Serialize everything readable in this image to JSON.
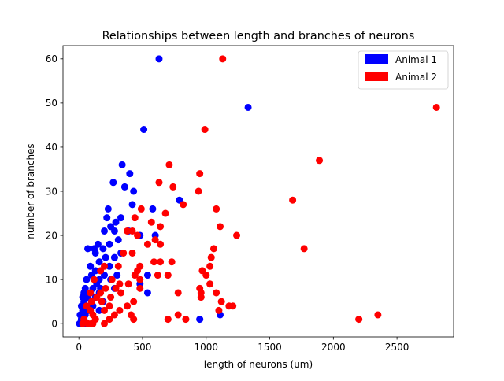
{
  "chart_data": {
    "type": "scatter",
    "title": "Relationships between length and branches of neurons",
    "xlabel": "length of neurons (um)",
    "ylabel": "number of branches",
    "xlim": [
      -125,
      2945
    ],
    "ylim": [
      -3,
      63
    ],
    "xticks": [
      0,
      500,
      1000,
      1500,
      2000,
      2500
    ],
    "yticks": [
      0,
      10,
      20,
      30,
      40,
      50,
      60
    ],
    "grid": false,
    "legend_position": "top-right",
    "series": [
      {
        "name": "Animal 1",
        "color": "#0000ff",
        "points": [
          [
            630,
            60
          ],
          [
            1330,
            49
          ],
          [
            510,
            44
          ],
          [
            340,
            36
          ],
          [
            400,
            34
          ],
          [
            270,
            32
          ],
          [
            360,
            31
          ],
          [
            430,
            30
          ],
          [
            790,
            28
          ],
          [
            420,
            27
          ],
          [
            230,
            26
          ],
          [
            580,
            26
          ],
          [
            220,
            24
          ],
          [
            330,
            24
          ],
          [
            290,
            23
          ],
          [
            250,
            22
          ],
          [
            280,
            21
          ],
          [
            200,
            21
          ],
          [
            390,
            21
          ],
          [
            600,
            20
          ],
          [
            480,
            20
          ],
          [
            310,
            19
          ],
          [
            240,
            18
          ],
          [
            150,
            18
          ],
          [
            190,
            17
          ],
          [
            70,
            17
          ],
          [
            120,
            17
          ],
          [
            330,
            16
          ],
          [
            130,
            16
          ],
          [
            280,
            15
          ],
          [
            210,
            15
          ],
          [
            160,
            14
          ],
          [
            90,
            13
          ],
          [
            240,
            13
          ],
          [
            130,
            12
          ],
          [
            100,
            11
          ],
          [
            200,
            11
          ],
          [
            300,
            11
          ],
          [
            540,
            11
          ],
          [
            60,
            10
          ],
          [
            160,
            10
          ],
          [
            250,
            10
          ],
          [
            140,
            9
          ],
          [
            480,
            9
          ],
          [
            50,
            8
          ],
          [
            110,
            8
          ],
          [
            170,
            8
          ],
          [
            280,
            8
          ],
          [
            40,
            7
          ],
          [
            90,
            7
          ],
          [
            160,
            7
          ],
          [
            540,
            7
          ],
          [
            30,
            6
          ],
          [
            70,
            6
          ],
          [
            130,
            6
          ],
          [
            40,
            5
          ],
          [
            100,
            5
          ],
          [
            190,
            5
          ],
          [
            20,
            4
          ],
          [
            60,
            4
          ],
          [
            110,
            4
          ],
          [
            30,
            3
          ],
          [
            80,
            3
          ],
          [
            160,
            3
          ],
          [
            10,
            2
          ],
          [
            50,
            2
          ],
          [
            1110,
            2
          ],
          [
            20,
            1
          ],
          [
            40,
            1
          ],
          [
            950,
            1
          ],
          [
            5,
            0
          ],
          [
            15,
            0
          ],
          [
            30,
            0
          ],
          [
            60,
            0
          ]
        ]
      },
      {
        "name": "Animal 2",
        "color": "#ff0000",
        "points": [
          [
            1130,
            60
          ],
          [
            2810,
            49
          ],
          [
            990,
            44
          ],
          [
            1890,
            37
          ],
          [
            710,
            36
          ],
          [
            950,
            34
          ],
          [
            630,
            32
          ],
          [
            740,
            31
          ],
          [
            940,
            30
          ],
          [
            1680,
            28
          ],
          [
            820,
            27
          ],
          [
            1080,
            26
          ],
          [
            490,
            26
          ],
          [
            680,
            25
          ],
          [
            440,
            24
          ],
          [
            570,
            23
          ],
          [
            1110,
            22
          ],
          [
            640,
            22
          ],
          [
            380,
            21
          ],
          [
            420,
            21
          ],
          [
            460,
            20
          ],
          [
            1240,
            20
          ],
          [
            600,
            19
          ],
          [
            640,
            18
          ],
          [
            540,
            18
          ],
          [
            1770,
            17
          ],
          [
            1060,
            17
          ],
          [
            420,
            16
          ],
          [
            350,
            16
          ],
          [
            1040,
            15
          ],
          [
            590,
            14
          ],
          [
            640,
            14
          ],
          [
            730,
            14
          ],
          [
            1030,
            13
          ],
          [
            480,
            13
          ],
          [
            310,
            13
          ],
          [
            200,
            13
          ],
          [
            170,
            12
          ],
          [
            460,
            12
          ],
          [
            970,
            12
          ],
          [
            620,
            11
          ],
          [
            700,
            11
          ],
          [
            440,
            11
          ],
          [
            1000,
            11
          ],
          [
            120,
            10
          ],
          [
            260,
            10
          ],
          [
            480,
            10
          ],
          [
            320,
            9
          ],
          [
            390,
            9
          ],
          [
            1030,
            9
          ],
          [
            210,
            8
          ],
          [
            290,
            8
          ],
          [
            480,
            8
          ],
          [
            950,
            8
          ],
          [
            90,
            7
          ],
          [
            170,
            7
          ],
          [
            330,
            7
          ],
          [
            780,
            7
          ],
          [
            1080,
            7
          ],
          [
            960,
            7
          ],
          [
            140,
            6
          ],
          [
            250,
            6
          ],
          [
            960,
            6
          ],
          [
            100,
            5
          ],
          [
            180,
            5
          ],
          [
            430,
            5
          ],
          [
            1120,
            5
          ],
          [
            60,
            4
          ],
          [
            240,
            4
          ],
          [
            380,
            4
          ],
          [
            1180,
            4
          ],
          [
            1210,
            4
          ],
          [
            90,
            3
          ],
          [
            200,
            3
          ],
          [
            320,
            3
          ],
          [
            1100,
            3
          ],
          [
            110,
            2
          ],
          [
            280,
            2
          ],
          [
            410,
            2
          ],
          [
            780,
            2
          ],
          [
            2350,
            2
          ],
          [
            40,
            1
          ],
          [
            130,
            1
          ],
          [
            240,
            1
          ],
          [
            430,
            1
          ],
          [
            700,
            1
          ],
          [
            840,
            1
          ],
          [
            2200,
            1
          ],
          [
            70,
            0
          ],
          [
            100,
            0
          ],
          [
            200,
            0
          ],
          [
            30,
            0
          ],
          [
            110,
            0
          ]
        ]
      }
    ]
  }
}
